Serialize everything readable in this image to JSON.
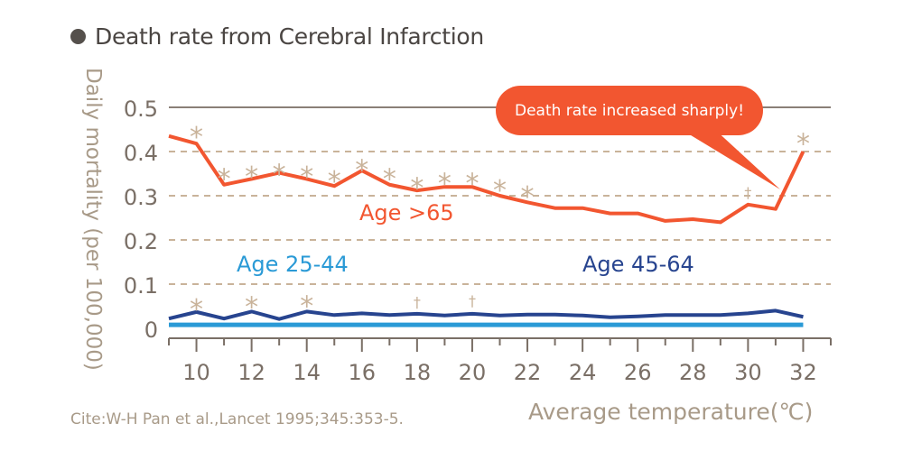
{
  "title": "Death rate from Cerebral Infarction",
  "citation": "Cite:W-H Pan et al.,Lancet 1995;345:353-5.",
  "callout": "Death rate increased sharply!",
  "colors": {
    "age65": "#f25630",
    "age45": "#27448f",
    "age25": "#2a9ad6",
    "grid": "#c9b39a",
    "axis": "#7a6f66",
    "text": "#a89a88"
  },
  "chart_data": {
    "type": "line",
    "title": "Death rate from Cerebral Infarction",
    "xlabel": "Average temperature(℃)",
    "ylabel": "Daily mortality (per 100,000)",
    "xlim": [
      9,
      33
    ],
    "ylim": [
      0,
      0.5
    ],
    "x_ticks": [
      "10",
      "12",
      "14",
      "16",
      "18",
      "20",
      "22",
      "24",
      "26",
      "28",
      "30",
      "32"
    ],
    "y_ticks": [
      "0",
      "0.1",
      "0.2",
      "0.3",
      "0.4",
      "0.5"
    ],
    "grid": true,
    "x": [
      9,
      10,
      11,
      12,
      13,
      14,
      15,
      16,
      17,
      18,
      19,
      20,
      21,
      22,
      23,
      24,
      25,
      26,
      27,
      28,
      29,
      30,
      31,
      32
    ],
    "series": [
      {
        "name": "Age >65",
        "values": [
          0.435,
          0.418,
          0.325,
          0.338,
          0.352,
          0.338,
          0.322,
          0.357,
          0.325,
          0.312,
          0.32,
          0.32,
          0.3,
          0.285,
          0.272,
          0.272,
          0.26,
          0.26,
          0.243,
          0.247,
          0.24,
          0.28,
          0.27,
          0.4
        ]
      },
      {
        "name": "Age 45-64",
        "values": [
          0.022,
          0.037,
          0.022,
          0.038,
          0.021,
          0.038,
          0.03,
          0.034,
          0.03,
          0.033,
          0.029,
          0.033,
          0.029,
          0.031,
          0.031,
          0.029,
          0.025,
          0.027,
          0.03,
          0.03,
          0.03,
          0.034,
          0.04,
          0.026
        ]
      },
      {
        "name": "Age 25-44",
        "values": [
          0.008,
          0.008,
          0.008,
          0.008,
          0.008,
          0.008,
          0.008,
          0.008,
          0.008,
          0.008,
          0.008,
          0.008,
          0.008,
          0.008,
          0.008,
          0.008,
          0.008,
          0.008,
          0.008,
          0.008,
          0.008,
          0.008,
          0.008,
          0.008
        ]
      }
    ],
    "significance_asterisk": [
      {
        "x": 10,
        "y": 0.445
      },
      {
        "x": 11,
        "y": 0.35
      },
      {
        "x": 12,
        "y": 0.355
      },
      {
        "x": 13,
        "y": 0.36
      },
      {
        "x": 14,
        "y": 0.355
      },
      {
        "x": 15,
        "y": 0.345
      },
      {
        "x": 16,
        "y": 0.37
      },
      {
        "x": 17,
        "y": 0.35
      },
      {
        "x": 18,
        "y": 0.33
      },
      {
        "x": 19,
        "y": 0.34
      },
      {
        "x": 20,
        "y": 0.34
      },
      {
        "x": 21,
        "y": 0.325
      },
      {
        "x": 22,
        "y": 0.31
      },
      {
        "x": 32,
        "y": 0.43
      },
      {
        "x": 10,
        "y": 0.055
      },
      {
        "x": 12,
        "y": 0.06
      },
      {
        "x": 14,
        "y": 0.062
      }
    ],
    "significance_dagger": [
      {
        "x": 30,
        "y": 0.31
      },
      {
        "x": 18,
        "y": 0.062
      },
      {
        "x": 20,
        "y": 0.065
      }
    ]
  }
}
